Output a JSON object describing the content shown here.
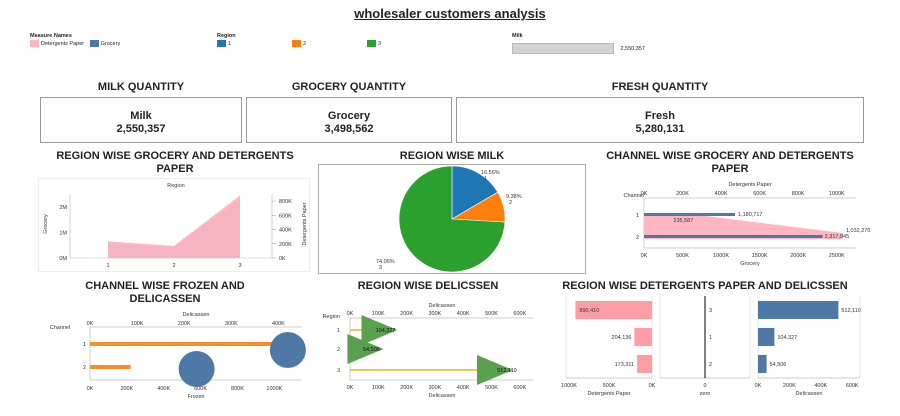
{
  "title": "wholesaler customers analysis",
  "legend": {
    "measure_header": "Measure Names",
    "measures": [
      {
        "label": "Detergents Paper",
        "color": "#ffb6c1"
      },
      {
        "label": "Grocery",
        "color": "#4e79a7"
      }
    ],
    "region_header": "Region",
    "regions": [
      {
        "label": "1",
        "color": "#1f77b4"
      },
      {
        "label": "2",
        "color": "#ff7f0e"
      },
      {
        "label": "3",
        "color": "#2ca02c"
      }
    ],
    "milk_header": "Milk",
    "milk_value": "2,550,357",
    "milk_fill": 1.0
  },
  "kpis": [
    {
      "header": "MILK QUANTITY",
      "name": "Milk",
      "value": "2,550,357"
    },
    {
      "header": "GROCERY QUANTITY",
      "name": "Grocery",
      "value": "3,498,562"
    },
    {
      "header": "FRESH QUANTITY",
      "name": "Fresh",
      "value": "5,280,131"
    }
  ],
  "sections": {
    "s1": "REGION WISE GROCERY AND DETERGENTS PAPER",
    "s2": "REGION WISE MILK",
    "s3": "CHANNEL WISE GROCERY AND DETERGENTS PAPER",
    "s4": "CHANNEL WISE FROZEN AND DELICASSEN",
    "s5": "REGION WISE DELICSSEN",
    "s6": "REGION WISE DETERGENTS PAPER AND DELICSSEN"
  },
  "chart_data": [
    {
      "id": "region-area",
      "type": "area",
      "header": "Region",
      "categories": [
        "1",
        "2",
        "3"
      ],
      "series": [
        {
          "name": "Grocery",
          "axis": "left",
          "values": [
            570000,
            430000,
            2300000
          ],
          "color": "#4e79a7"
        },
        {
          "name": "Detergents Paper",
          "axis": "right",
          "values": [
            235000,
            170000,
            880000
          ],
          "color": "#ffb6c1"
        }
      ],
      "ylabel": "Grocery",
      "ylim": [
        0,
        2500000
      ],
      "yticks": [
        "0M",
        "1M",
        "2M"
      ],
      "ytick_values": [
        0,
        1000000,
        2000000
      ],
      "y2label": "Detergents Paper",
      "y2lim": [
        0,
        900000
      ],
      "y2ticks": [
        "0K",
        "200K",
        "400K",
        "600K",
        "800K"
      ],
      "y2tick_values": [
        0,
        200000,
        400000,
        600000,
        800000
      ]
    },
    {
      "id": "region-milk-pie",
      "type": "pie",
      "slices": [
        {
          "label": "1",
          "percent": "16.56%",
          "value": 16.56,
          "color": "#1f77b4"
        },
        {
          "label": "2",
          "percent": "9.38%",
          "value": 9.38,
          "color": "#ff7f0e"
        },
        {
          "label": "3",
          "percent": "74.06%",
          "value": 74.06,
          "color": "#2ca02c"
        }
      ]
    },
    {
      "id": "channel-grocery",
      "type": "bar",
      "orientation": "horizontal",
      "row_header": "Channel",
      "categories": [
        "1",
        "2"
      ],
      "top_axis_label": "Detergents Paper",
      "top_ticks": [
        "0K",
        "200K",
        "400K",
        "600K",
        "800K",
        "1000K"
      ],
      "top_tick_values": [
        0,
        200000,
        400000,
        600000,
        800000,
        1000000
      ],
      "top_max": 1100000,
      "bottom_axis_label": "Grocery",
      "bottom_ticks": [
        "0K",
        "500K",
        "1000K",
        "1500K",
        "2000K",
        "2500K"
      ],
      "bottom_tick_values": [
        0,
        500000,
        1000000,
        1500000,
        2000000,
        2500000
      ],
      "bottom_max": 2750000,
      "grocery": [
        1180717,
        2317845
      ],
      "grocery_labels": [
        "1,180,717",
        "2,317,845"
      ],
      "detergents": [
        235587,
        1032270
      ],
      "detergents_labels": [
        "235,587",
        "1,032,270"
      ]
    },
    {
      "id": "channel-frozen",
      "type": "scatter",
      "row_header": "Channel",
      "categories": [
        "1",
        "2"
      ],
      "top_axis_label": "Delicassen",
      "top_ticks": [
        "0K",
        "100K",
        "200K",
        "300K",
        "400K"
      ],
      "top_tick_values": [
        0,
        100000,
        200000,
        300000,
        400000
      ],
      "top_max": 450000,
      "bottom_axis_label": "Frozen",
      "bottom_ticks": [
        "0K",
        "200K",
        "400K",
        "600K",
        "800K",
        "1000K"
      ],
      "bottom_tick_values": [
        0,
        200000,
        400000,
        600000,
        800000,
        1000000
      ],
      "bottom_max": 1150000,
      "frozen": [
        1000000,
        220000
      ],
      "delicassen": [
        420000,
        290000
      ]
    },
    {
      "id": "region-delicassen",
      "type": "scatter",
      "row_header": "Region",
      "categories": [
        "1",
        "2",
        "3"
      ],
      "top_axis_label": "Delicassen",
      "bottom_axis_label": "Delicassen",
      "ticks": [
        "0K",
        "100K",
        "200K",
        "300K",
        "400K",
        "500K",
        "600K"
      ],
      "tick_values": [
        0,
        100000,
        200000,
        300000,
        400000,
        500000,
        600000
      ],
      "max": 650000,
      "values": [
        104327,
        54506,
        512110
      ],
      "labels": [
        "104,327",
        "54,506",
        "512,110"
      ]
    },
    {
      "id": "region-detergents-delicassen",
      "type": "bar",
      "orientation": "horizontal",
      "categories": [
        "3",
        "1",
        "2"
      ],
      "detergents": [
        890410,
        204136,
        173311
      ],
      "detergents_labels": [
        "890,410",
        "204,136",
        "173,311"
      ],
      "detergents_ticks": [
        "1000K",
        "500K",
        "0K"
      ],
      "detergents_tick_values": [
        1000000,
        500000,
        0
      ],
      "detergents_max": 1000000,
      "detergents_axis_label": "Detergents Paper",
      "zero_tick": "0",
      "zero_axis_label": "zero",
      "delicassen": [
        512110,
        104327,
        54506
      ],
      "delicassen_labels": [
        "512,110",
        "104,327",
        "54,506"
      ],
      "delicassen_ticks": [
        "0K",
        "200K",
        "400K",
        "600K"
      ],
      "delicassen_tick_values": [
        0,
        200000,
        400000,
        600000
      ],
      "delicassen_max": 650000,
      "delicassen_axis_label": "Delicassen"
    }
  ]
}
